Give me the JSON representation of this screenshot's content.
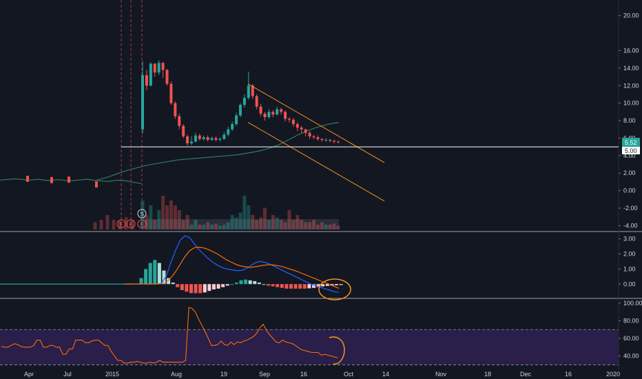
{
  "colors": {
    "background": "#131722",
    "up": "#26a69a",
    "down": "#ef5350",
    "channel": "#f7931a",
    "sma": "#2e7d5b",
    "macd": "#2962ff",
    "signal": "#ff6d00",
    "rsi": "#ff6d00",
    "rsi_band": "#2a1e4a",
    "price_line": "#ffffff",
    "earnings_marker": "#ef5350"
  },
  "chart_data": [
    {
      "type": "candlestick",
      "panel": "price",
      "y_ticks": [
        "20.00",
        "16.00",
        "14.00",
        "12.00",
        "10.00",
        "8.00",
        "6.00",
        "4.00",
        "2.00",
        "0.00",
        "-2.00",
        "-4.00"
      ],
      "y_tick_values": [
        20,
        16,
        14,
        12,
        10,
        8,
        6,
        4,
        2,
        0,
        -2,
        -4
      ],
      "ylim": [
        -4.6,
        21.0
      ],
      "x_ticks": [
        "Apr",
        "Jul",
        "2015",
        "Aug",
        "19",
        "Sep",
        "16",
        "Oct",
        "14",
        "Nov",
        "18",
        "Dec",
        "16",
        "2020"
      ],
      "last_price": "5.52",
      "horizontal_level": "5.00",
      "horizontal_level_value": 5.0,
      "early_line": [
        1.2,
        1.25,
        1.3,
        1.35,
        1.3,
        1.25,
        1.2,
        1.25,
        1.3,
        1.2,
        1.15,
        1.2,
        1.25,
        1.2,
        1.1,
        1.15,
        1.2,
        1.25,
        1.3,
        1.2,
        1.15,
        1.1,
        1.05,
        1.1,
        1.2,
        1.15,
        1.1,
        1.0,
        0.9,
        0.8
      ],
      "candles": [
        [
          7.0,
          13.2,
          14.8,
          6.5
        ],
        [
          13.2,
          12.0,
          13.8,
          11.5
        ],
        [
          12.0,
          14.5,
          14.7,
          11.9
        ],
        [
          14.5,
          13.5,
          14.6,
          13.0
        ],
        [
          13.5,
          14.6,
          14.9,
          13.2
        ],
        [
          14.6,
          13.8,
          14.7,
          12.9
        ],
        [
          13.8,
          12.2,
          13.9,
          12.0
        ],
        [
          12.2,
          10.0,
          12.5,
          9.8
        ],
        [
          10.0,
          8.5,
          10.2,
          8.2
        ],
        [
          8.5,
          7.4,
          8.8,
          7.0
        ],
        [
          7.4,
          6.2,
          7.6,
          6.0
        ],
        [
          6.2,
          5.4,
          6.4,
          5.1
        ],
        [
          5.4,
          5.6,
          6.2,
          5.2
        ],
        [
          5.6,
          6.3,
          6.6,
          5.5
        ],
        [
          6.3,
          5.9,
          6.5,
          5.7
        ],
        [
          5.9,
          6.1,
          6.3,
          5.7
        ],
        [
          6.1,
          5.8,
          6.3,
          5.6
        ],
        [
          5.8,
          6.0,
          6.2,
          5.7
        ],
        [
          6.0,
          5.8,
          6.2,
          5.6
        ],
        [
          5.8,
          5.9,
          6.1,
          5.6
        ],
        [
          5.9,
          6.4,
          6.7,
          5.8
        ],
        [
          6.4,
          7.0,
          7.3,
          6.2
        ],
        [
          7.0,
          7.6,
          7.9,
          6.8
        ],
        [
          7.6,
          8.6,
          8.9,
          7.4
        ],
        [
          8.6,
          9.8,
          10.0,
          8.4
        ],
        [
          9.8,
          10.6,
          11.0,
          9.5
        ],
        [
          10.6,
          12.0,
          13.6,
          10.4
        ],
        [
          12.0,
          10.8,
          12.2,
          10.5
        ],
        [
          10.8,
          9.6,
          11.0,
          9.3
        ],
        [
          9.6,
          8.8,
          9.9,
          8.5
        ],
        [
          8.8,
          8.4,
          9.0,
          8.0
        ],
        [
          8.4,
          9.0,
          9.3,
          8.2
        ],
        [
          9.0,
          8.7,
          9.2,
          8.4
        ],
        [
          8.7,
          9.3,
          9.6,
          8.6
        ],
        [
          9.3,
          9.0,
          9.5,
          8.7
        ],
        [
          9.0,
          8.2,
          9.2,
          7.9
        ],
        [
          8.2,
          8.1,
          8.4,
          7.8
        ],
        [
          8.1,
          7.6,
          8.3,
          7.3
        ],
        [
          7.6,
          7.2,
          7.8,
          6.8
        ],
        [
          7.2,
          7.0,
          7.4,
          6.6
        ],
        [
          7.0,
          6.6,
          7.1,
          6.2
        ],
        [
          6.6,
          6.2,
          6.8,
          5.9
        ],
        [
          6.2,
          6.1,
          6.4,
          5.9
        ],
        [
          6.1,
          5.9,
          6.3,
          5.7
        ],
        [
          5.9,
          5.8,
          6.0,
          5.6
        ],
        [
          5.8,
          5.8,
          6.0,
          5.6
        ],
        [
          5.8,
          5.7,
          5.9,
          5.5
        ],
        [
          5.7,
          5.6,
          5.8,
          5.4
        ],
        [
          5.6,
          5.52,
          5.7,
          5.4
        ]
      ],
      "sma": [
        1.2,
        1.5,
        1.9,
        2.3,
        2.6,
        2.9,
        3.1,
        3.3,
        3.5,
        3.6,
        3.7,
        3.8,
        3.9,
        4.0,
        4.1,
        4.3,
        4.5,
        4.8,
        5.2,
        5.8,
        6.4,
        6.9,
        7.3,
        7.6,
        7.8
      ],
      "volume_recent": [
        0.6,
        0.3,
        0.5,
        0.2,
        0.4,
        0.7,
        0.5,
        0.6,
        0.5,
        0.4,
        0.2,
        0.3,
        0.1,
        0.2,
        0.1,
        0.1,
        0.15,
        0.1,
        0.12,
        0.08,
        0.1,
        0.15,
        0.3,
        0.25,
        0.35,
        0.7,
        0.5,
        0.3,
        0.2,
        0.25,
        0.45,
        0.2,
        0.3,
        0.25,
        0.2,
        0.15,
        0.4,
        0.2,
        0.3,
        0.2,
        0.15,
        0.15,
        0.2,
        0.1,
        0.15,
        0.1,
        0.1,
        0.12,
        0.08
      ],
      "volume_early": [
        0.15,
        0.2,
        0.3,
        0.2,
        0.18,
        0.25,
        0.2
      ],
      "earnings_markers": [
        "E",
        "E",
        "E"
      ],
      "dividend_marker": "S"
    },
    {
      "type": "macd",
      "panel": "macd",
      "y_ticks": [
        "3.00",
        "2.00",
        "1.00",
        "0.00"
      ],
      "y_tick_values": [
        3,
        2,
        1,
        0
      ],
      "ylim": [
        -0.9,
        3.3
      ],
      "macd": [
        0.0,
        0.02,
        0.0,
        0.01,
        0.02,
        0.0,
        0.01,
        0.0,
        0.05,
        0.5,
        1.4,
        2.2,
        2.9,
        3.2,
        3.1,
        2.7,
        2.3,
        2.0,
        1.7,
        1.45,
        1.25,
        1.1,
        1.0,
        0.95,
        0.9,
        0.9,
        1.0,
        1.2,
        1.4,
        1.5,
        1.45,
        1.35,
        1.2,
        1.05,
        0.9,
        0.75,
        0.6,
        0.45,
        0.3,
        0.15,
        0.0,
        -0.1,
        -0.2,
        -0.3,
        -0.4,
        -0.5,
        -0.55
      ],
      "signal": [
        0.0,
        0.01,
        0.01,
        0.01,
        0.01,
        0.01,
        0.01,
        0.01,
        0.02,
        0.1,
        0.4,
        0.8,
        1.3,
        1.8,
        2.2,
        2.4,
        2.45,
        2.4,
        2.3,
        2.15,
        2.0,
        1.8,
        1.6,
        1.45,
        1.3,
        1.2,
        1.15,
        1.1,
        1.15,
        1.2,
        1.25,
        1.28,
        1.27,
        1.22,
        1.15,
        1.05,
        0.95,
        0.85,
        0.72,
        0.6,
        0.47,
        0.35,
        0.22,
        0.1,
        -0.02,
        -0.15,
        -0.28
      ],
      "histogram": [
        0.4,
        1.0,
        1.4,
        1.6,
        1.4,
        0.9,
        0.4,
        0.1,
        -0.2,
        -0.4,
        -0.5,
        -0.6,
        -0.6,
        -0.6,
        -0.55,
        -0.45,
        -0.35,
        -0.3,
        -0.2,
        -0.1,
        0.0,
        0.1,
        0.25,
        0.3,
        0.25,
        0.2,
        0.1,
        0.0,
        -0.1,
        -0.15,
        -0.2,
        -0.25,
        -0.3,
        -0.3,
        -0.3,
        -0.3,
        -0.3,
        -0.28,
        -0.25,
        -0.2,
        -0.15,
        -0.12,
        -0.1,
        -0.08,
        -0.06
      ]
    },
    {
      "type": "line",
      "panel": "rsi",
      "y_ticks": [
        "100.00",
        "80.00",
        "60.00",
        "40.00"
      ],
      "y_tick_values": [
        100,
        80,
        60,
        40
      ],
      "ylim": [
        28,
        103
      ],
      "band": [
        30,
        70
      ],
      "values": [
        51,
        50,
        50,
        52,
        54,
        53,
        51,
        50,
        50,
        50,
        52,
        58,
        58,
        50,
        50,
        52,
        52,
        50,
        50,
        42,
        42,
        48,
        48,
        58,
        58,
        58,
        55,
        55,
        57,
        58,
        58,
        55,
        52,
        52,
        45,
        40,
        35,
        35,
        32,
        32,
        33,
        33,
        34,
        33,
        32,
        32,
        33,
        32,
        33,
        35,
        33,
        33,
        33,
        33,
        33,
        33,
        33,
        35,
        95,
        94,
        90,
        82,
        75,
        68,
        60,
        52,
        52,
        53,
        57,
        53,
        52,
        56,
        53,
        56,
        55,
        57,
        58,
        60,
        62,
        66,
        72,
        76,
        69,
        64,
        60,
        56,
        55,
        58,
        56,
        55,
        54,
        52,
        49,
        47,
        46,
        45,
        44,
        44,
        44,
        41,
        42,
        41,
        40,
        39,
        38
      ]
    }
  ]
}
